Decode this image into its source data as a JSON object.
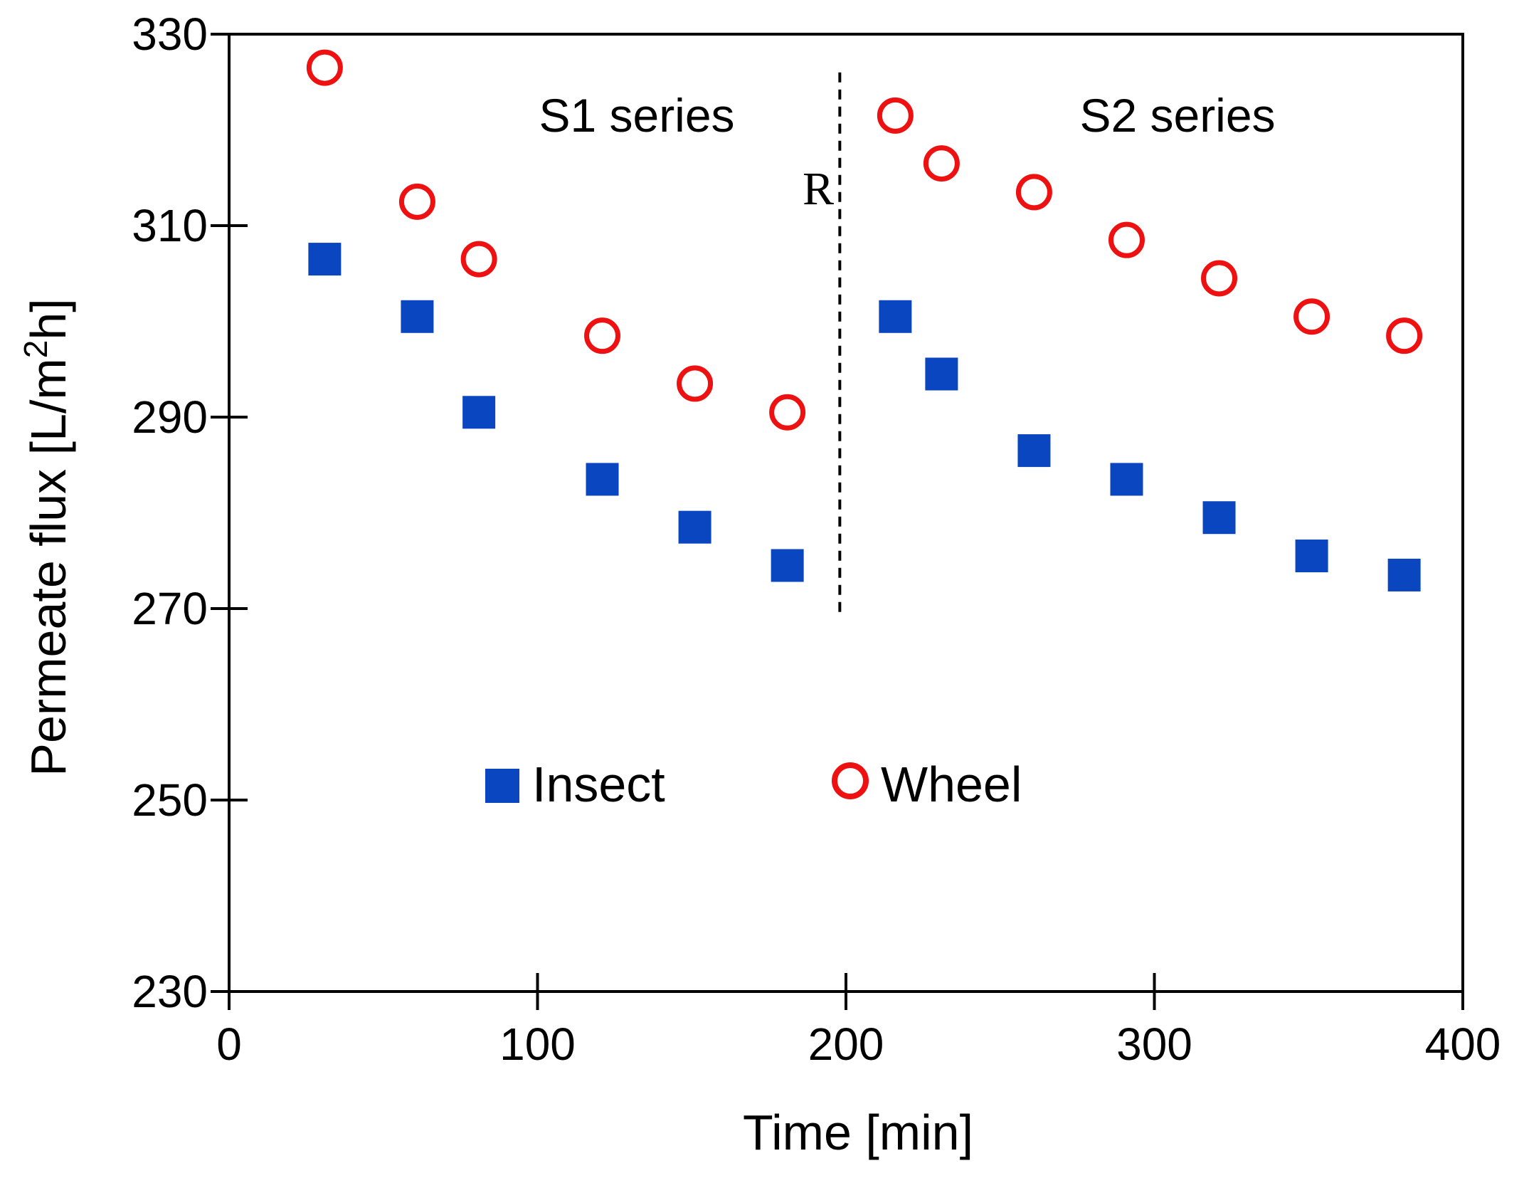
{
  "chart_data": {
    "type": "scatter",
    "xlabel": "Time [min]",
    "ylabel_main": "Permeate flux [L/m",
    "ylabel_sup": "2",
    "ylabel_end": "h]",
    "xlim": [
      0,
      400
    ],
    "ylim": [
      230,
      330
    ],
    "xticks": [
      0,
      100,
      200,
      300,
      400
    ],
    "yticks": [
      230,
      250,
      270,
      290,
      310,
      330
    ],
    "grid": false,
    "legend_position": "center",
    "annotations": {
      "s1": "S1 series",
      "s2": "S2 series",
      "r": "R"
    },
    "divider": {
      "x": 198,
      "y_range": [
        269,
        326
      ]
    },
    "series": [
      {
        "name": "Insect",
        "marker": "filled-square",
        "color": "#0a46c0",
        "points": [
          [
            31,
            306.5
          ],
          [
            61,
            300.5
          ],
          [
            81,
            290.5
          ],
          [
            121,
            283.5
          ],
          [
            151,
            278.5
          ],
          [
            181,
            274.5
          ],
          [
            216,
            300.5
          ],
          [
            231,
            294.5
          ],
          [
            261,
            286.5
          ],
          [
            291,
            283.5
          ],
          [
            321,
            279.5
          ],
          [
            351,
            275.5
          ],
          [
            381,
            273.5
          ]
        ]
      },
      {
        "name": "Wheel",
        "marker": "open-circle",
        "color": "#ee1111",
        "points": [
          [
            31,
            326.5
          ],
          [
            61,
            312.5
          ],
          [
            81,
            306.5
          ],
          [
            121,
            298.5
          ],
          [
            151,
            293.5
          ],
          [
            181,
            290.5
          ],
          [
            216,
            321.5
          ],
          [
            231,
            316.5
          ],
          [
            261,
            313.5
          ],
          [
            291,
            308.5
          ],
          [
            321,
            304.5
          ],
          [
            351,
            300.5
          ],
          [
            381,
            298.5
          ]
        ]
      }
    ]
  }
}
